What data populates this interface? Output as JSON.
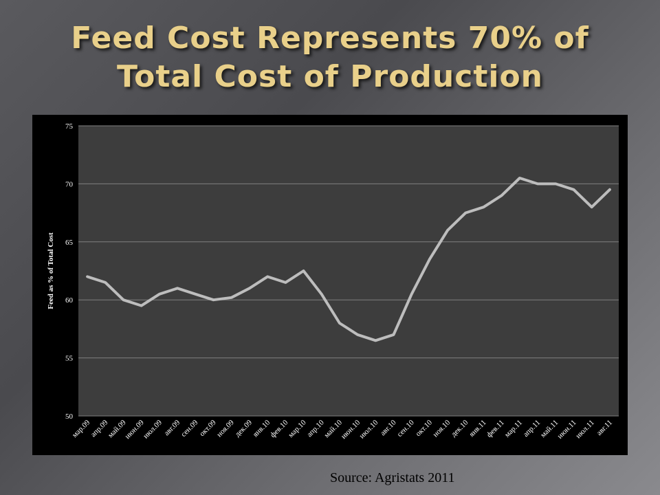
{
  "slide": {
    "title_line1": "Feed Cost Represents 70% of",
    "title_line2": "Total Cost of Production",
    "source": "Source: Agristats 2011"
  },
  "chart_data": {
    "type": "line",
    "ylabel": "Feed as % of Total Cost",
    "xlabel": "",
    "ylim": [
      50,
      75
    ],
    "yticks": [
      50,
      55,
      60,
      65,
      70,
      75
    ],
    "grid": true,
    "legend": "none",
    "categories": [
      "мар.09",
      "апр.09",
      "май.09",
      "июн.09",
      "июл.09",
      "авг.09",
      "сен.09",
      "окт.09",
      "ноя.09",
      "дек.09",
      "янв.10",
      "фев.10",
      "мар.10",
      "апр.10",
      "май.10",
      "июн.10",
      "июл.10",
      "авг.10",
      "сен.10",
      "окт.10",
      "ноя.10",
      "дек.10",
      "янв.11",
      "фев.11",
      "мар.11",
      "апр.11",
      "май.11",
      "июн.11",
      "июл.11",
      "авг.11"
    ],
    "series": [
      {
        "values": [
          62.0,
          61.5,
          60.0,
          59.5,
          60.5,
          61.0,
          60.5,
          60.0,
          60.2,
          61.0,
          62.0,
          61.5,
          62.5,
          60.5,
          58.0,
          57.0,
          56.5,
          57.0,
          60.5,
          63.5,
          66.0,
          67.5,
          68.0,
          69.0,
          70.5,
          70.0,
          70.0,
          69.5,
          68.0,
          69.5
        ]
      }
    ],
    "colors": {
      "plot_bg": "#3d3d3d",
      "line": "#bdbdbd",
      "grid": "#808080",
      "text": "#ffffff"
    }
  }
}
